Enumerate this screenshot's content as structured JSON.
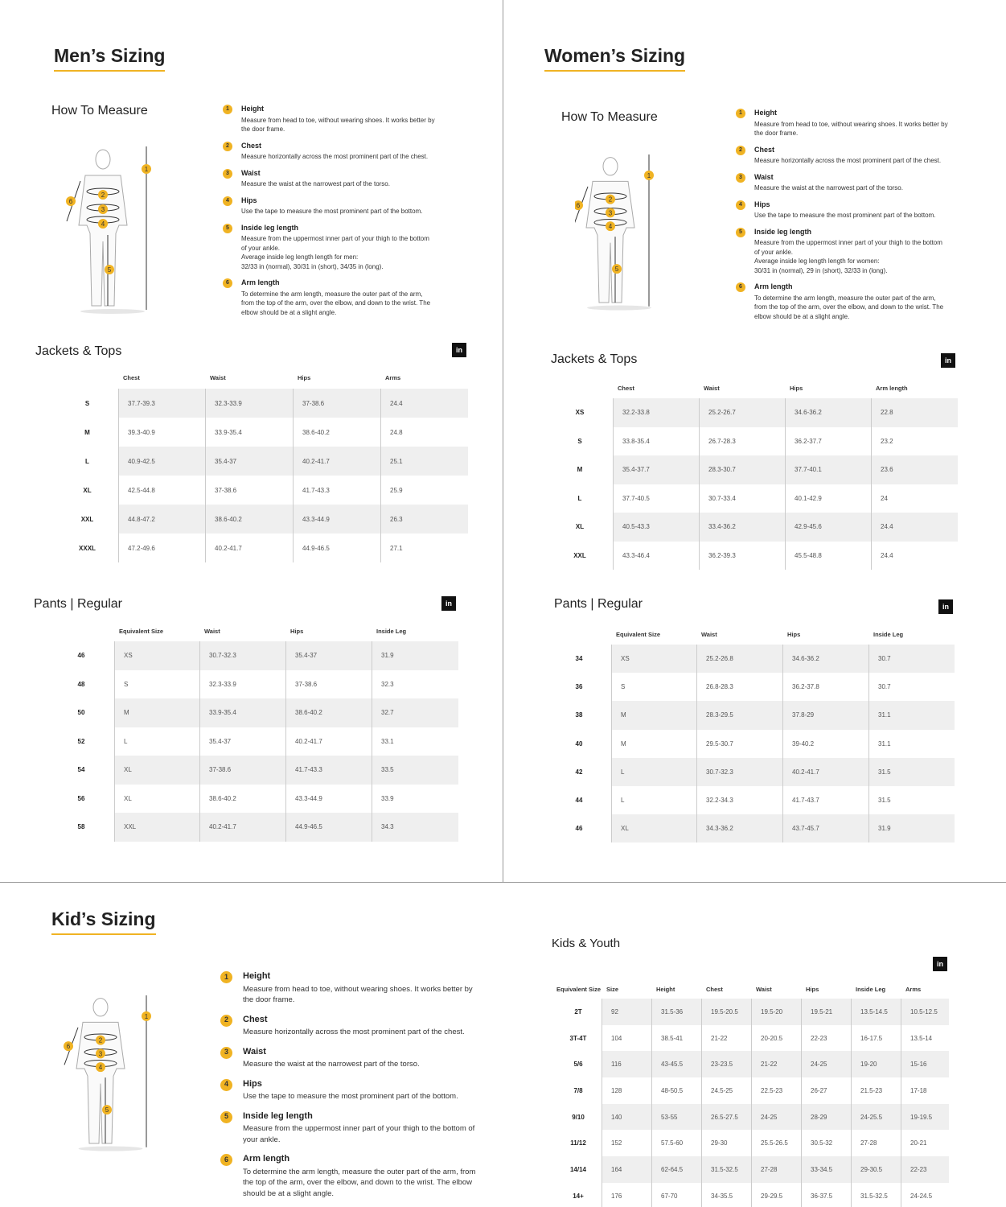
{
  "colors": {
    "accent": "#f0b323",
    "row_alt": "#efefef",
    "badge": "#111111"
  },
  "linkedin_badge": "in",
  "men": {
    "title": "Men’s Sizing",
    "how_to": "How To Measure",
    "instructions": [
      {
        "n": "1",
        "h": "Height",
        "t": "Measure from head to toe, without wearing shoes. It works better by the door frame."
      },
      {
        "n": "2",
        "h": "Chest",
        "t": "Measure horizontally across the most prominent part of the chest."
      },
      {
        "n": "3",
        "h": "Waist",
        "t": "Measure the waist at the narrowest part of the torso."
      },
      {
        "n": "4",
        "h": "Hips",
        "t": "Use the tape to measure the most prominent part of the bottom."
      },
      {
        "n": "5",
        "h": "Inside leg length",
        "t": "Measure from the uppermost inner part of your thigh to the bottom of your ankle.",
        "t2": "Average inside leg length length for men:",
        "t3": "32/33 in (normal), 30/31 in (short), 34/35 in (long)."
      },
      {
        "n": "6",
        "h": "Arm length",
        "t": "To determine the arm length, measure the outer part of the arm, from the top of the arm, over the elbow, and down to the wrist. The elbow should be at a slight angle."
      }
    ],
    "jackets": {
      "title": "Jackets & Tops",
      "headers": [
        "Chest",
        "Waist",
        "Hips",
        "Arms"
      ],
      "rows": [
        [
          "S",
          "37.7-39.3",
          "32.3-33.9",
          "37-38.6",
          "24.4"
        ],
        [
          "M",
          "39.3-40.9",
          "33.9-35.4",
          "38.6-40.2",
          "24.8"
        ],
        [
          "L",
          "40.9-42.5",
          "35.4-37",
          "40.2-41.7",
          "25.1"
        ],
        [
          "XL",
          "42.5-44.8",
          "37-38.6",
          "41.7-43.3",
          "25.9"
        ],
        [
          "XXL",
          "44.8-47.2",
          "38.6-40.2",
          "43.3-44.9",
          "26.3"
        ],
        [
          "XXXL",
          "47.2-49.6",
          "40.2-41.7",
          "44.9-46.5",
          "27.1"
        ]
      ]
    },
    "pants": {
      "title": "Pants | Regular",
      "headers": [
        "Equivalent Size",
        "Waist",
        "Hips",
        "Inside Leg"
      ],
      "rows": [
        [
          "46",
          "XS",
          "30.7-32.3",
          "35.4-37",
          "31.9"
        ],
        [
          "48",
          "S",
          "32.3-33.9",
          "37-38.6",
          "32.3"
        ],
        [
          "50",
          "M",
          "33.9-35.4",
          "38.6-40.2",
          "32.7"
        ],
        [
          "52",
          "L",
          "35.4-37",
          "40.2-41.7",
          "33.1"
        ],
        [
          "54",
          "XL",
          "37-38.6",
          "41.7-43.3",
          "33.5"
        ],
        [
          "56",
          "XL",
          "38.6-40.2",
          "43.3-44.9",
          "33.9"
        ],
        [
          "58",
          "XXL",
          "40.2-41.7",
          "44.9-46.5",
          "34.3"
        ]
      ]
    }
  },
  "women": {
    "title": "Women’s Sizing",
    "how_to": "How To Measure",
    "instructions": [
      {
        "n": "1",
        "h": "Height",
        "t": "Measure from head to toe, without wearing shoes. It works better by the door frame."
      },
      {
        "n": "2",
        "h": "Chest",
        "t": "Measure horizontally across the most prominent part of the chest."
      },
      {
        "n": "3",
        "h": "Waist",
        "t": "Measure the waist at the narrowest part of the torso."
      },
      {
        "n": "4",
        "h": "Hips",
        "t": "Use the tape to measure the most prominent part of the bottom."
      },
      {
        "n": "5",
        "h": "Inside leg length",
        "t": "Measure from the uppermost inner part of your thigh to the bottom of your ankle.",
        "t2": "Average inside leg length length for women:",
        "t3": "30/31 in (normal), 29 in (short), 32/33 in (long)."
      },
      {
        "n": "6",
        "h": "Arm length",
        "t": "To determine the arm length, measure the outer part of the arm, from the top of the arm, over the elbow, and down to the wrist. The elbow should be at a slight angle."
      }
    ],
    "jackets": {
      "title": "Jackets & Tops",
      "headers": [
        "Chest",
        "Waist",
        "Hips",
        "Arm length"
      ],
      "rows": [
        [
          "XS",
          "32.2-33.8",
          "25.2-26.7",
          "34.6-36.2",
          "22.8"
        ],
        [
          "S",
          "33.8-35.4",
          "26.7-28.3",
          "36.2-37.7",
          "23.2"
        ],
        [
          "M",
          "35.4-37.7",
          "28.3-30.7",
          "37.7-40.1",
          "23.6"
        ],
        [
          "L",
          "37.7-40.5",
          "30.7-33.4",
          "40.1-42.9",
          "24"
        ],
        [
          "XL",
          "40.5-43.3",
          "33.4-36.2",
          "42.9-45.6",
          "24.4"
        ],
        [
          "XXL",
          "43.3-46.4",
          "36.2-39.3",
          "45.5-48.8",
          "24.4"
        ]
      ]
    },
    "pants": {
      "title": "Pants | Regular",
      "headers": [
        "Equivalent Size",
        "Waist",
        "Hips",
        "Inside Leg"
      ],
      "rows": [
        [
          "34",
          "XS",
          "25.2-26.8",
          "34.6-36.2",
          "30.7"
        ],
        [
          "36",
          "S",
          "26.8-28.3",
          "36.2-37.8",
          "30.7"
        ],
        [
          "38",
          "M",
          "28.3-29.5",
          "37.8-29",
          "31.1"
        ],
        [
          "40",
          "M",
          "29.5-30.7",
          "39-40.2",
          "31.1"
        ],
        [
          "42",
          "L",
          "30.7-32.3",
          "40.2-41.7",
          "31.5"
        ],
        [
          "44",
          "L",
          "32.2-34.3",
          "41.7-43.7",
          "31.5"
        ],
        [
          "46",
          "XL",
          "34.3-36.2",
          "43.7-45.7",
          "31.9"
        ]
      ]
    }
  },
  "kids": {
    "title": "Kid’s Sizing",
    "instructions": [
      {
        "n": "1",
        "h": "Height",
        "t": "Measure from head to toe, without wearing shoes. It works better by the door frame."
      },
      {
        "n": "2",
        "h": "Chest",
        "t": "Measure horizontally across the most prominent part of the chest."
      },
      {
        "n": "3",
        "h": "Waist",
        "t": "Measure the waist at the narrowest part of the torso."
      },
      {
        "n": "4",
        "h": "Hips",
        "t": "Use the tape to measure the most prominent part of the bottom."
      },
      {
        "n": "5",
        "h": "Inside leg length",
        "t": "Measure from the uppermost inner part of your thigh to the bottom of your ankle."
      },
      {
        "n": "6",
        "h": "Arm length",
        "t": "To determine the arm length, measure the outer part of the arm, from the top of the arm, over the elbow, and down to the wrist. The elbow should be at a slight angle."
      }
    ],
    "youth": {
      "title": "Kids & Youth",
      "headers": [
        "Equivalent Size",
        "Size",
        "Height",
        "Chest",
        "Waist",
        "Hips",
        "Inside Leg",
        "Arms"
      ],
      "rows": [
        [
          "2T",
          "92",
          "31.5-36",
          "19.5-20.5",
          "19.5-20",
          "19.5-21",
          "13.5-14.5",
          "10.5-12.5"
        ],
        [
          "3T-4T",
          "104",
          "38.5-41",
          "21-22",
          "20-20.5",
          "22-23",
          "16-17.5",
          "13.5-14"
        ],
        [
          "5/6",
          "116",
          "43-45.5",
          "23-23.5",
          "21-22",
          "24-25",
          "19-20",
          "15-16"
        ],
        [
          "7/8",
          "128",
          "48-50.5",
          "24.5-25",
          "22.5-23",
          "26-27",
          "21.5-23",
          "17-18"
        ],
        [
          "9/10",
          "140",
          "53-55",
          "26.5-27.5",
          "24-25",
          "28-29",
          "24-25.5",
          "19-19.5"
        ],
        [
          "11/12",
          "152",
          "57.5-60",
          "29-30",
          "25.5-26.5",
          "30.5-32",
          "27-28",
          "20-21"
        ],
        [
          "14/14",
          "164",
          "62-64.5",
          "31.5-32.5",
          "27-28",
          "33-34.5",
          "29-30.5",
          "22-23"
        ],
        [
          "14+",
          "176",
          "67-70",
          "34-35.5",
          "29-29.5",
          "36-37.5",
          "31.5-32.5",
          "24-24.5"
        ]
      ]
    }
  }
}
